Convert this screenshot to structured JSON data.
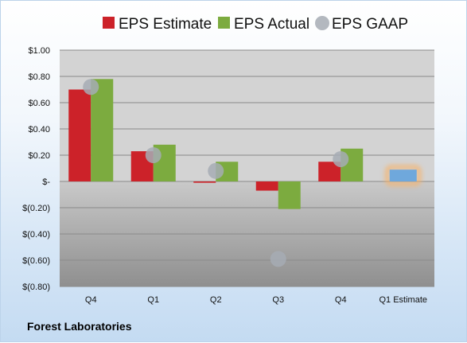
{
  "company": "Forest Laboratories",
  "chart_data": {
    "type": "bar",
    "categories": [
      "Q4",
      "Q1",
      "Q2",
      "Q3",
      "Q4",
      "Q1 Estimate"
    ],
    "series": [
      {
        "name": "EPS Estimate",
        "color": "#cc2229",
        "values": [
          0.7,
          0.23,
          -0.01,
          -0.07,
          0.15,
          null
        ]
      },
      {
        "name": "EPS Actual",
        "color": "#7cab3f",
        "values": [
          0.78,
          0.28,
          0.15,
          -0.21,
          0.25,
          null
        ]
      },
      {
        "name": "EPS GAAP",
        "color": "#a6abb4",
        "marker": "circle",
        "values": [
          0.72,
          0.2,
          0.08,
          -0.59,
          0.17,
          null
        ]
      }
    ],
    "estimate_bar": {
      "category": "Q1 Estimate",
      "value": 0.09,
      "color": "#6fa8dc",
      "glow_color": "#f6b26b"
    },
    "ylim": [
      -0.8,
      1.0
    ],
    "yticks": [
      {
        "value": 1.0,
        "label": "$1.00"
      },
      {
        "value": 0.8,
        "label": "$0.80"
      },
      {
        "value": 0.6,
        "label": "$0.60"
      },
      {
        "value": 0.4,
        "label": "$0.40"
      },
      {
        "value": 0.2,
        "label": "$0.20"
      },
      {
        "value": 0.0,
        "label": "$-"
      },
      {
        "value": -0.2,
        "label": "$(0.20)"
      },
      {
        "value": -0.4,
        "label": "$(0.40)"
      },
      {
        "value": -0.6,
        "label": "$(0.60)"
      },
      {
        "value": -0.8,
        "label": "$(0.80)"
      }
    ],
    "grid": true,
    "legend_position": "top"
  }
}
